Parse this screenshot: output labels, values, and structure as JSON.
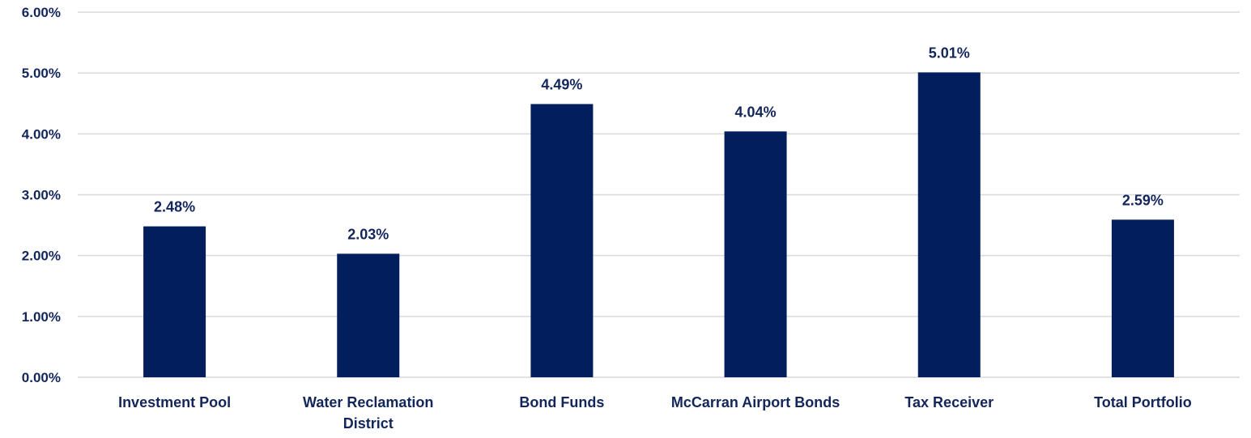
{
  "chart_data": {
    "type": "bar",
    "title": "",
    "xlabel": "",
    "ylabel": "",
    "categories": [
      [
        "Investment Pool"
      ],
      [
        "Water Reclamation",
        "District"
      ],
      [
        "Bond Funds"
      ],
      [
        "McCarran Airport Bonds"
      ],
      [
        "Tax Receiver"
      ],
      [
        "Total Portfolio"
      ]
    ],
    "values": [
      2.48,
      2.03,
      4.49,
      4.04,
      5.01,
      2.59
    ],
    "data_labels": [
      "2.48%",
      "2.03%",
      "4.49%",
      "4.04%",
      "5.01%",
      "2.59%"
    ],
    "ylim": [
      0,
      6
    ],
    "yticks": [
      0,
      1,
      2,
      3,
      4,
      5,
      6
    ],
    "ytick_labels": [
      "0.00%",
      "1.00%",
      "2.00%",
      "3.00%",
      "4.00%",
      "5.00%",
      "6.00%"
    ],
    "grid": true,
    "legend": "none",
    "colors": {
      "bar": "#031e5c",
      "text": "#13265c",
      "grid": "#d9d9d9"
    }
  }
}
